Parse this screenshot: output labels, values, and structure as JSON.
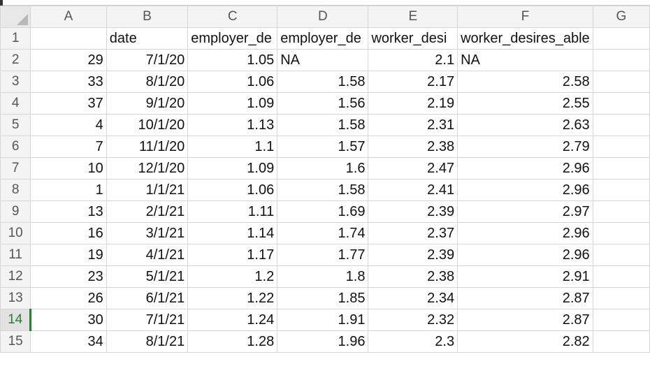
{
  "columns": [
    "A",
    "B",
    "C",
    "D",
    "E",
    "F",
    "G"
  ],
  "header_row": {
    "row_num": "1",
    "cells": [
      "",
      "date",
      "employer_de",
      "employer_de",
      "worker_desi",
      "worker_desires_able",
      ""
    ]
  },
  "rows": [
    {
      "row_num": "2",
      "a": "29",
      "b": "7/1/20",
      "c": "1.05",
      "d": "NA",
      "e": "2.1",
      "f": "NA"
    },
    {
      "row_num": "3",
      "a": "33",
      "b": "8/1/20",
      "c": "1.06",
      "d": "1.58",
      "e": "2.17",
      "f": "2.58"
    },
    {
      "row_num": "4",
      "a": "37",
      "b": "9/1/20",
      "c": "1.09",
      "d": "1.56",
      "e": "2.19",
      "f": "2.55"
    },
    {
      "row_num": "5",
      "a": "4",
      "b": "10/1/20",
      "c": "1.13",
      "d": "1.58",
      "e": "2.31",
      "f": "2.63"
    },
    {
      "row_num": "6",
      "a": "7",
      "b": "11/1/20",
      "c": "1.1",
      "d": "1.57",
      "e": "2.38",
      "f": "2.79"
    },
    {
      "row_num": "7",
      "a": "10",
      "b": "12/1/20",
      "c": "1.09",
      "d": "1.6",
      "e": "2.47",
      "f": "2.96"
    },
    {
      "row_num": "8",
      "a": "1",
      "b": "1/1/21",
      "c": "1.06",
      "d": "1.58",
      "e": "2.41",
      "f": "2.96"
    },
    {
      "row_num": "9",
      "a": "13",
      "b": "2/1/21",
      "c": "1.11",
      "d": "1.69",
      "e": "2.39",
      "f": "2.97"
    },
    {
      "row_num": "10",
      "a": "16",
      "b": "3/1/21",
      "c": "1.14",
      "d": "1.74",
      "e": "2.37",
      "f": "2.96"
    },
    {
      "row_num": "11",
      "a": "19",
      "b": "4/1/21",
      "c": "1.17",
      "d": "1.77",
      "e": "2.39",
      "f": "2.96"
    },
    {
      "row_num": "12",
      "a": "23",
      "b": "5/1/21",
      "c": "1.2",
      "d": "1.8",
      "e": "2.38",
      "f": "2.91"
    },
    {
      "row_num": "13",
      "a": "26",
      "b": "6/1/21",
      "c": "1.22",
      "d": "1.85",
      "e": "2.34",
      "f": "2.87"
    },
    {
      "row_num": "14",
      "a": "30",
      "b": "7/1/21",
      "c": "1.24",
      "d": "1.91",
      "e": "2.32",
      "f": "2.87"
    },
    {
      "row_num": "15",
      "a": "34",
      "b": "8/1/21",
      "c": "1.28",
      "d": "1.96",
      "e": "2.3",
      "f": "2.82"
    }
  ],
  "active_row": "14",
  "text_cells": [
    "NA"
  ],
  "colors": {
    "active_accent": "#2f7a3a",
    "header_bg": "#f4f4f4",
    "grid": "#d6d6d6"
  }
}
